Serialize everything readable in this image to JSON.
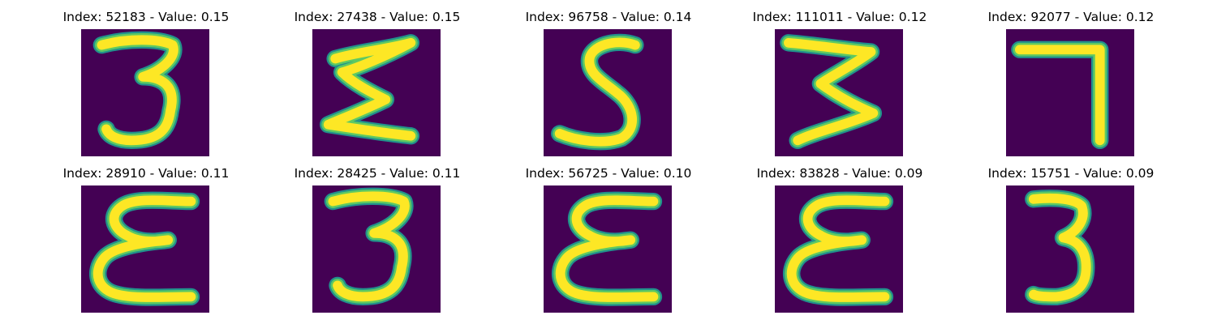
{
  "colors": {
    "background": "#440154",
    "glyph_edge": "#21918c",
    "glyph_mid": "#5ec962",
    "glyph_core": "#fde725"
  },
  "panels": [
    {
      "title": "Index: 52183 - Value: 0.15",
      "glyph": "3"
    },
    {
      "title": "Index: 27438 - Value: 0.15",
      "glyph": "sigma"
    },
    {
      "title": "Index: 96758 - Value: 0.14",
      "glyph": "5"
    },
    {
      "title": "Index: 111011 - Value: 0.12",
      "glyph": "3-angular"
    },
    {
      "title": "Index: 92077 - Value: 0.12",
      "glyph": "7"
    },
    {
      "title": "Index: 28910 - Value: 0.11",
      "glyph": "epsilon"
    },
    {
      "title": "Index: 28425 - Value: 0.11",
      "glyph": "3"
    },
    {
      "title": "Index: 56725 - Value: 0.10",
      "glyph": "epsilon"
    },
    {
      "title": "Index: 83828 - Value: 0.09",
      "glyph": "epsilon"
    },
    {
      "title": "Index: 15751 - Value: 0.09",
      "glyph": "3-narrow"
    }
  ]
}
